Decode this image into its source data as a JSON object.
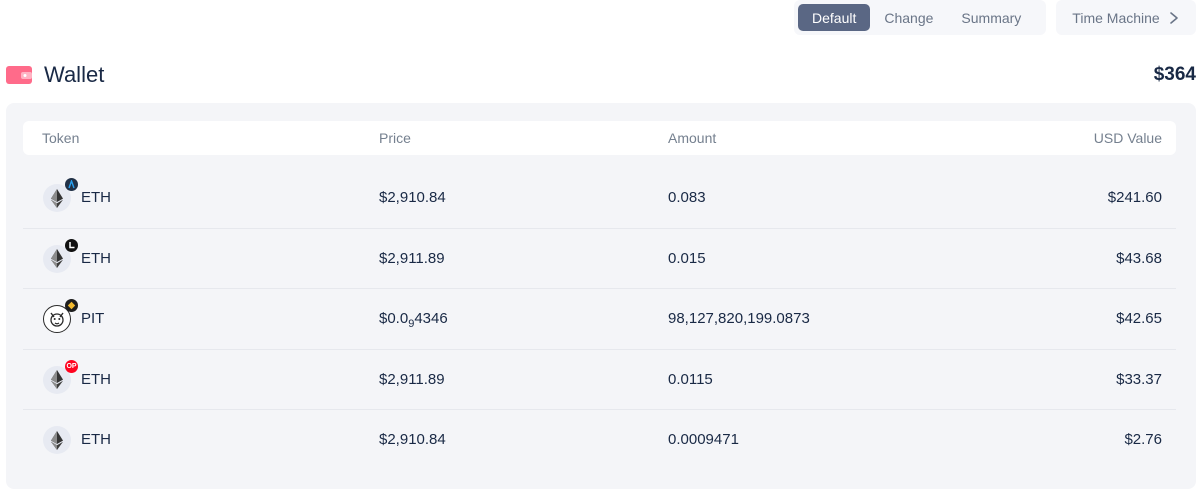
{
  "toolbar": {
    "tabs": [
      "Default",
      "Change",
      "Summary"
    ],
    "active_tab": "Default",
    "time_machine_label": "Time Machine"
  },
  "wallet": {
    "title": "Wallet",
    "total": "$364",
    "icon": "wallet-icon"
  },
  "table": {
    "headers": {
      "token": "Token",
      "price": "Price",
      "amount": "Amount",
      "usd_value": "USD Value"
    },
    "rows": [
      {
        "symbol": "ETH",
        "logo": "eth-icon",
        "chain_badge": "arbitrum-badge-icon",
        "price": "$2,910.84",
        "amount": "0.083",
        "usd_value": "$241.60"
      },
      {
        "symbol": "ETH",
        "logo": "eth-icon",
        "chain_badge": "linea-badge-icon",
        "price": "$2,911.89",
        "amount": "0.015",
        "usd_value": "$43.68"
      },
      {
        "symbol": "PIT",
        "logo": "pit-icon",
        "chain_badge": "bsc-badge-icon",
        "price_prefix": "$0.0",
        "price_sub": "9",
        "price_suffix": "4346",
        "amount": "98,127,820,199.0873",
        "usd_value": "$42.65"
      },
      {
        "symbol": "ETH",
        "logo": "eth-icon",
        "chain_badge": "optimism-badge-icon",
        "chain_badge_text": "OP",
        "price": "$2,911.89",
        "amount": "0.0115",
        "usd_value": "$33.37"
      },
      {
        "symbol": "ETH",
        "logo": "eth-icon",
        "chain_badge": "",
        "price": "$2,910.84",
        "amount": "0.0009471",
        "usd_value": "$2.76"
      }
    ]
  },
  "colors": {
    "active_tab_bg": "#5a6784",
    "wallet_icon": "#ff6b8a",
    "card_bg": "#f4f5f8",
    "text_primary": "#192945",
    "text_secondary": "#75808f"
  }
}
